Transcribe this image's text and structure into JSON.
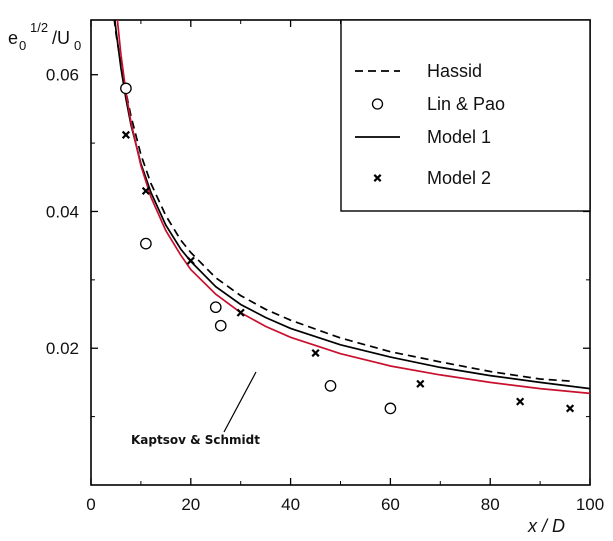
{
  "chart_data": {
    "type": "line",
    "title": "",
    "xlabel": "x / D",
    "ylabel": "e0 1/2/U0",
    "ylabel_parts": {
      "base": "e",
      "sub": "0",
      "sup": "1/2",
      "slash": "/U",
      "sub2": "0"
    },
    "xlim": [
      0,
      100
    ],
    "ylim": [
      0.0,
      0.068
    ],
    "xticks": [
      0,
      20,
      40,
      60,
      80,
      100
    ],
    "yticks": [
      0.02,
      0.04,
      0.06
    ],
    "xtick_labels": [
      "0",
      "20",
      "40",
      "60",
      "80",
      "100"
    ],
    "ytick_labels": [
      "0.02",
      "0.04",
      "0.06"
    ],
    "legend_position": "top-right",
    "series": [
      {
        "name": "Hassid",
        "style": "dashed",
        "color": "#000000",
        "x": [
          4,
          5,
          6,
          7,
          8,
          10,
          12,
          15,
          18,
          20,
          25,
          30,
          35,
          40,
          50,
          60,
          70,
          80,
          90,
          96
        ],
        "y": [
          0.072,
          0.066,
          0.0615,
          0.0575,
          0.054,
          0.0483,
          0.0441,
          0.0394,
          0.0358,
          0.034,
          0.0303,
          0.0277,
          0.0257,
          0.0241,
          0.0215,
          0.0195,
          0.018,
          0.0166,
          0.0155,
          0.0152
        ]
      },
      {
        "name": "Model 1",
        "style": "solid",
        "color": "#000000",
        "x": [
          4.5,
          5,
          6,
          7,
          8,
          10,
          12,
          15,
          18,
          20,
          25,
          30,
          35,
          40,
          50,
          60,
          70,
          80,
          90,
          100
        ],
        "y": [
          0.07,
          0.0665,
          0.061,
          0.0565,
          0.0527,
          0.047,
          0.0428,
          0.038,
          0.0345,
          0.0327,
          0.029,
          0.0264,
          0.0245,
          0.0229,
          0.0205,
          0.0187,
          0.0172,
          0.016,
          0.015,
          0.0141
        ]
      },
      {
        "name": "Kaptsov & Schmidt",
        "style": "solid",
        "color": "#c8102e",
        "x": [
          5,
          6,
          7,
          8,
          10,
          12,
          15,
          18,
          20,
          25,
          30,
          35,
          40,
          50,
          60,
          70,
          80,
          90,
          100
        ],
        "y": [
          0.07,
          0.063,
          0.0575,
          0.0531,
          0.0467,
          0.0421,
          0.0372,
          0.0336,
          0.0315,
          0.0279,
          0.0252,
          0.0232,
          0.0216,
          0.0192,
          0.0174,
          0.0161,
          0.015,
          0.0141,
          0.0134
        ]
      },
      {
        "name": "Lin & Pao",
        "style": "circle",
        "color": "#000000",
        "x": [
          7,
          11,
          25,
          26,
          48,
          60
        ],
        "y": [
          0.058,
          0.0353,
          0.026,
          0.0233,
          0.0145,
          0.0112
        ]
      },
      {
        "name": "Model 2",
        "style": "x",
        "color": "#000000",
        "x": [
          7,
          11,
          20,
          30,
          45,
          66,
          86,
          96
        ],
        "y": [
          0.0512,
          0.043,
          0.0328,
          0.0252,
          0.0193,
          0.0148,
          0.0122,
          0.0112
        ]
      }
    ],
    "legend": [
      {
        "label": "Hassid",
        "style": "dashed"
      },
      {
        "label": "Lin & Pao",
        "style": "circle"
      },
      {
        "label": "Model 1",
        "style": "solid"
      },
      {
        "label": "Model 2",
        "style": "x"
      }
    ],
    "annotations": [
      {
        "text": "Kaptsov & Schmidt",
        "points_to": {
          "x": 33,
          "y": 0.0225
        }
      }
    ]
  }
}
